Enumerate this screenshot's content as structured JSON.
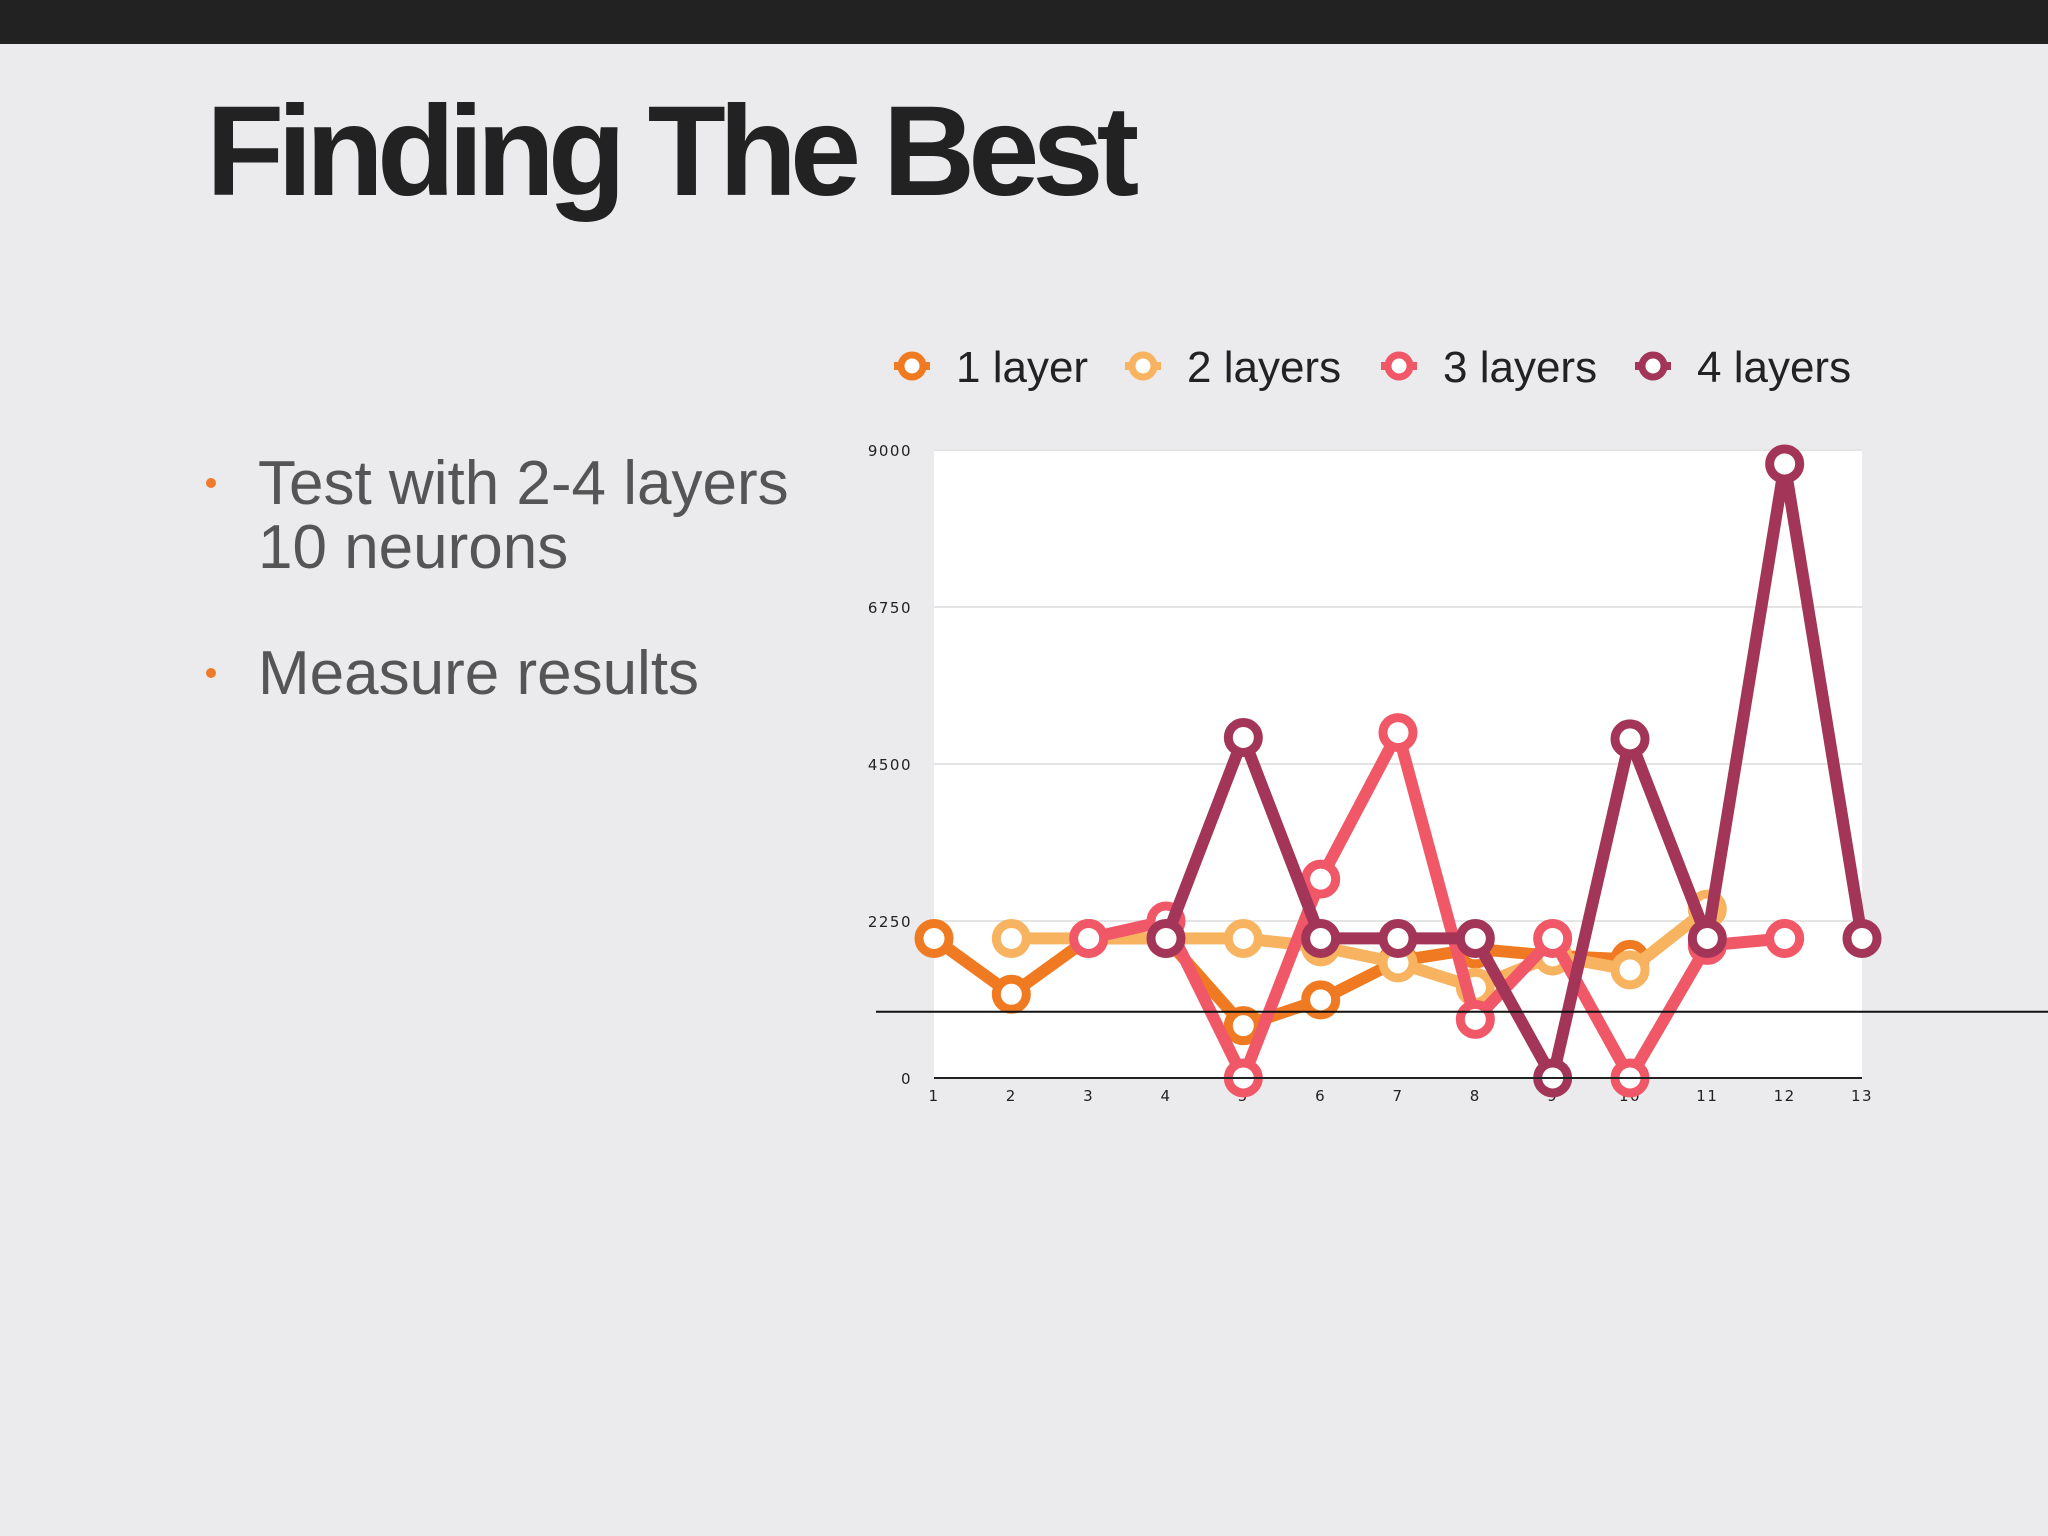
{
  "slide": {
    "title": "Finding The Best",
    "bullets": [
      "Test with 2-4 layers\n10 neurons",
      "Measure results"
    ],
    "accent_color": "#f07a2a"
  },
  "chart_data": {
    "type": "line",
    "x": [
      1,
      2,
      3,
      4,
      5,
      6,
      7,
      8,
      9,
      10,
      11,
      12,
      13
    ],
    "series": [
      {
        "name": "1 layer",
        "color": "#f07a22",
        "values": [
          2000,
          1200,
          2000,
          2000,
          750,
          1120,
          1680,
          1850,
          1750,
          1700,
          null,
          null,
          null
        ]
      },
      {
        "name": "2 layers",
        "color": "#f8b360",
        "values": [
          null,
          2000,
          2000,
          2000,
          2000,
          1880,
          1650,
          1300,
          1750,
          1550,
          2420,
          null,
          null
        ]
      },
      {
        "name": "3 layers",
        "color": "#f05868",
        "values": [
          null,
          null,
          2000,
          2250,
          0,
          2850,
          4950,
          840,
          2000,
          0,
          1900,
          2000,
          null
        ]
      },
      {
        "name": "4 layers",
        "color": "#a23558",
        "values": [
          null,
          null,
          null,
          2000,
          4880,
          2000,
          2000,
          2000,
          0,
          4860,
          2000,
          8800,
          2000
        ]
      }
    ],
    "yticks": [
      0,
      2250,
      4500,
      6750,
      9000
    ],
    "xticks": [
      "1",
      "2",
      "3",
      "4",
      "5",
      "6",
      "7",
      "8",
      "9",
      "10",
      "11",
      "12",
      "13"
    ],
    "ylim": [
      0,
      9000
    ],
    "xlim": [
      1,
      13
    ],
    "reference_line": 950,
    "legend_position": "top",
    "grid": true
  }
}
